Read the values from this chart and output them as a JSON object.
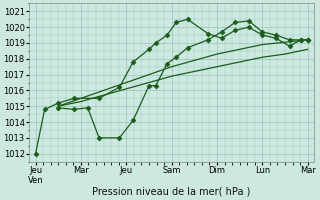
{
  "xlabel": "Pression niveau de la mer( hPa )",
  "bg_color": "#cce8e0",
  "grid_color": "#a0c8c0",
  "line_color": "#1a5c1a",
  "ylim": [
    1011.5,
    1021.5
  ],
  "yticks": [
    1012,
    1013,
    1014,
    1015,
    1016,
    1017,
    1018,
    1019,
    1020,
    1021
  ],
  "xtick_labels": [
    "Jeu\nVen",
    "Mar",
    "Jeu",
    "Sam",
    "Dim",
    "Lun",
    "Mar"
  ],
  "xtick_positions": [
    0,
    1,
    2,
    3,
    4,
    5,
    6
  ],
  "line1_x": [
    0.0,
    0.2,
    0.5,
    0.85,
    1.4,
    1.85,
    2.15,
    2.5,
    2.65,
    2.9,
    3.1,
    3.35,
    3.8,
    4.1,
    4.4,
    4.7,
    5.0,
    5.3,
    5.6,
    5.85,
    6.0
  ],
  "line1_y": [
    1012.0,
    1014.8,
    1015.2,
    1015.5,
    1015.5,
    1016.2,
    1017.8,
    1018.6,
    1019.0,
    1019.5,
    1020.3,
    1020.5,
    1019.6,
    1019.3,
    1019.8,
    1020.0,
    1019.5,
    1019.3,
    1018.8,
    1019.2,
    1019.2
  ],
  "line2_x": [
    0.5,
    0.85,
    1.15,
    1.4,
    1.85,
    2.15,
    2.5,
    2.65,
    2.9,
    3.1,
    3.35,
    3.8,
    4.1,
    4.4,
    4.7,
    5.0,
    5.3,
    5.6,
    5.85,
    6.0
  ],
  "line2_y": [
    1014.9,
    1014.8,
    1014.9,
    1013.0,
    1013.0,
    1014.1,
    1016.3,
    1016.3,
    1017.7,
    1018.1,
    1018.7,
    1019.2,
    1019.7,
    1020.3,
    1020.4,
    1019.7,
    1019.5,
    1019.2,
    1019.2,
    1019.2
  ],
  "line3_x": [
    0.5,
    1.0,
    1.5,
    2.0,
    2.5,
    3.0,
    3.5,
    4.0,
    4.5,
    5.0,
    5.5,
    6.0
  ],
  "line3_y": [
    1015.0,
    1015.5,
    1016.0,
    1016.5,
    1017.0,
    1017.5,
    1017.9,
    1018.3,
    1018.6,
    1018.9,
    1019.05,
    1019.2
  ],
  "line4_x": [
    0.5,
    1.0,
    1.5,
    2.0,
    2.5,
    3.0,
    3.5,
    4.0,
    4.5,
    5.0,
    5.5,
    6.0
  ],
  "line4_y": [
    1015.0,
    1015.3,
    1015.7,
    1016.1,
    1016.5,
    1016.9,
    1017.2,
    1017.5,
    1017.8,
    1018.1,
    1018.3,
    1018.6
  ],
  "xlabel_fontsize": 7,
  "tick_fontsize": 6
}
